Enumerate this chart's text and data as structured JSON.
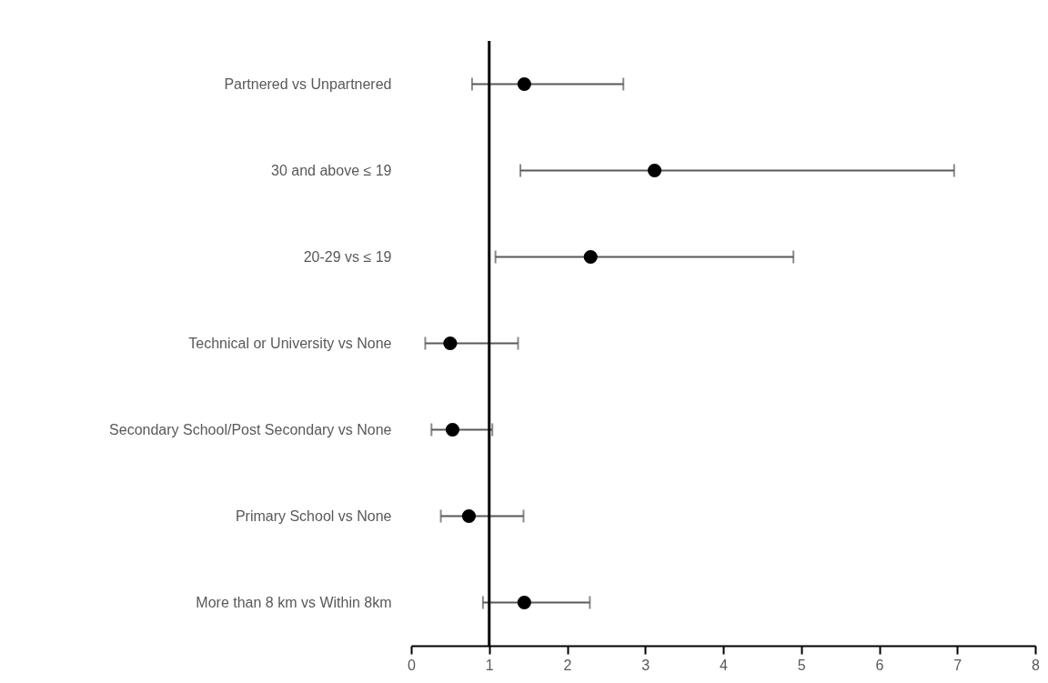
{
  "chart_data": {
    "type": "scatter",
    "orientation": "horizontal",
    "categories": [
      "Partnered vs Unpartnered",
      "30 and above  ≤ 19",
      "20-29  vs ≤ 19",
      "Technical or University  vs None",
      "Secondary School/Post Secondary vs None",
      "Primary School vs None",
      "More than 8 km vs Within 8km"
    ],
    "values": [
      1.45,
      3.12,
      2.3,
      0.5,
      0.53,
      0.74,
      1.45
    ],
    "errors": [
      [
        0.78,
        2.72
      ],
      [
        1.4,
        6.96
      ],
      [
        1.08,
        4.9
      ],
      [
        0.18,
        1.37
      ],
      [
        0.26,
        1.04
      ],
      [
        0.38,
        1.44
      ],
      [
        0.92,
        2.29
      ]
    ],
    "color": "#000000",
    "marker": "circle",
    "xlim": [
      0,
      8
    ],
    "xticks": [
      0,
      1,
      2,
      3,
      4,
      5,
      6,
      7,
      8
    ],
    "grid": false,
    "ref_lines": [
      {
        "axis": "x",
        "value": 1,
        "color": "#000000"
      }
    ]
  }
}
